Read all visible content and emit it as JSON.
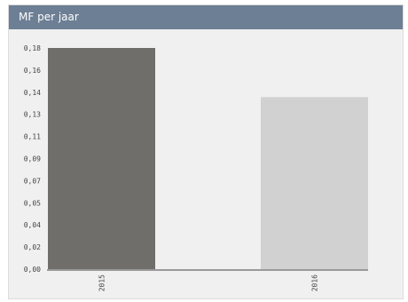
{
  "widget": {
    "title": "MF per jaar"
  },
  "chart_data": {
    "type": "bar",
    "categories": [
      "2015",
      "2016"
    ],
    "values": [
      0.18,
      0.14
    ],
    "y_ticks": [
      "0,00",
      "0,02",
      "0,04",
      "0,05",
      "0,07",
      "0,09",
      "0,11",
      "0,13",
      "0,14",
      "0,16",
      "0,18"
    ],
    "ylim": [
      0,
      0.18
    ],
    "colors": [
      "#6f6e6a",
      "#d1d1d1"
    ],
    "axis_color": "#9a9a9a",
    "grid": false,
    "legend": "none"
  }
}
